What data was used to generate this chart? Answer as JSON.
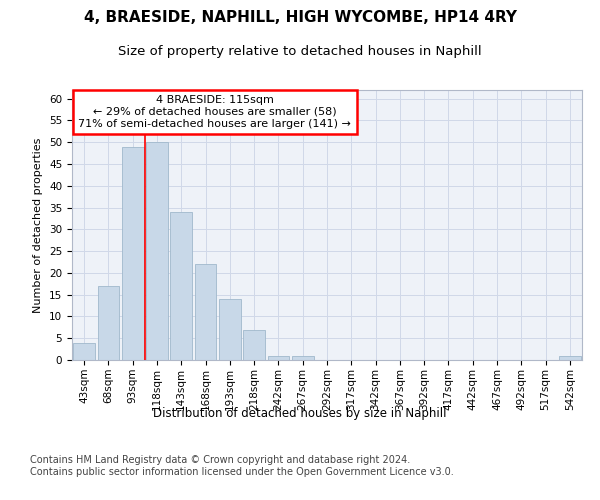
{
  "title": "4, BRAESIDE, NAPHILL, HIGH WYCOMBE, HP14 4RY",
  "subtitle": "Size of property relative to detached houses in Naphill",
  "xlabel": "Distribution of detached houses by size in Naphill",
  "ylabel": "Number of detached properties",
  "bin_labels": [
    "43sqm",
    "68sqm",
    "93sqm",
    "118sqm",
    "143sqm",
    "168sqm",
    "193sqm",
    "218sqm",
    "242sqm",
    "267sqm",
    "292sqm",
    "317sqm",
    "342sqm",
    "367sqm",
    "392sqm",
    "417sqm",
    "442sqm",
    "467sqm",
    "492sqm",
    "517sqm",
    "542sqm"
  ],
  "bar_values": [
    4,
    17,
    49,
    50,
    34,
    22,
    14,
    7,
    1,
    1,
    0,
    0,
    0,
    0,
    0,
    0,
    0,
    0,
    0,
    0,
    1
  ],
  "bar_color": "#c8d8e8",
  "bar_edge_color": "#a0b8cc",
  "vline_x": 2.5,
  "annotation_text": "4 BRAESIDE: 115sqm\n← 29% of detached houses are smaller (58)\n71% of semi-detached houses are larger (141) →",
  "annotation_box_color": "white",
  "annotation_box_edge_color": "red",
  "ylim": [
    0,
    62
  ],
  "yticks": [
    0,
    5,
    10,
    15,
    20,
    25,
    30,
    35,
    40,
    45,
    50,
    55,
    60
  ],
  "grid_color": "#d0d8e8",
  "bg_color": "#eef2f8",
  "footer_text": "Contains HM Land Registry data © Crown copyright and database right 2024.\nContains public sector information licensed under the Open Government Licence v3.0.",
  "title_fontsize": 11,
  "subtitle_fontsize": 9.5,
  "xlabel_fontsize": 8.5,
  "ylabel_fontsize": 8,
  "tick_fontsize": 7.5,
  "footer_fontsize": 7,
  "annot_fontsize": 8
}
